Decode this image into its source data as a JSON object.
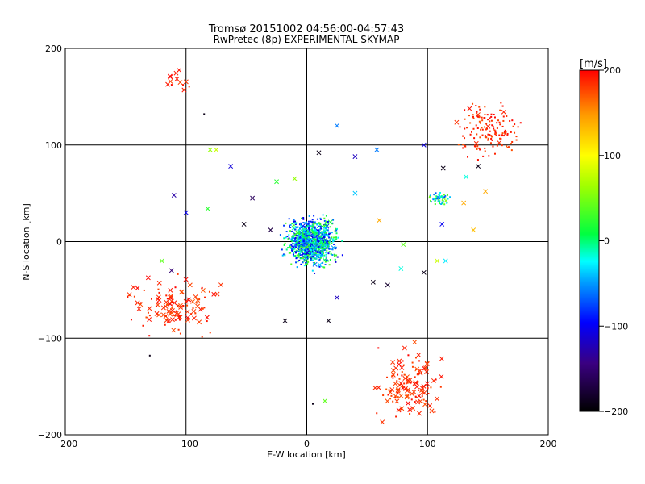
{
  "chart_data": {
    "type": "scatter",
    "title": "Tromsø 20151002 04:56:00-04:57:43",
    "subtitle": "RwPretec (8p) EXPERIMENTAL SKYMAP",
    "xlabel": "E-W location [km]",
    "ylabel": "N-S location [km]",
    "xlim": [
      -200,
      200
    ],
    "ylim": [
      -200,
      200
    ],
    "xticks": [
      -200,
      -100,
      0,
      100,
      200
    ],
    "yticks": [
      -200,
      -100,
      0,
      100,
      200
    ],
    "xtick_labels": [
      "−200",
      "−100",
      "0",
      "100",
      "200"
    ],
    "ytick_labels": [
      "−200",
      "−100",
      "0",
      "100",
      "200"
    ],
    "grid": true,
    "markers": [
      "point",
      "x"
    ],
    "colorbar": {
      "label": "[m/s]",
      "min": -200,
      "max": 200,
      "ticks": [
        200,
        100,
        0,
        -100,
        -200
      ],
      "tick_labels": [
        "200",
        "100",
        "0",
        "−100",
        "−200"
      ],
      "colormap": "rainbow"
    },
    "clusters": [
      {
        "name": "central-meteor-cluster",
        "center": [
          4,
          0
        ],
        "spread": [
          16,
          18
        ],
        "count": 1100,
        "velocity_range": [
          -110,
          40
        ],
        "marker": "point"
      },
      {
        "name": "northeast-cluster",
        "center": [
          150,
          115
        ],
        "spread": [
          22,
          22
        ],
        "count": 150,
        "velocity_range": [
          170,
          200
        ],
        "marker": "point"
      },
      {
        "name": "east-cluster",
        "center": [
          110,
          45
        ],
        "spread": [
          7,
          6
        ],
        "count": 60,
        "velocity_range": [
          -80,
          60
        ],
        "marker": "point"
      },
      {
        "name": "southeast-cluster",
        "center": [
          85,
          -150
        ],
        "spread": [
          20,
          28
        ],
        "count": 140,
        "velocity_range": [
          170,
          200
        ],
        "marker": "x"
      },
      {
        "name": "southwest-cluster",
        "center": [
          -110,
          -65
        ],
        "spread": [
          30,
          22
        ],
        "count": 120,
        "velocity_range": [
          170,
          200
        ],
        "marker": "x"
      },
      {
        "name": "northwest-cluster",
        "center": [
          -108,
          165
        ],
        "spread": [
          10,
          10
        ],
        "count": 14,
        "velocity_range": [
          170,
          200
        ],
        "marker": "x"
      }
    ],
    "points": [
      {
        "x": -80,
        "y": 95,
        "v": 60,
        "m": "x"
      },
      {
        "x": -75,
        "y": 95,
        "v": 80,
        "m": "x"
      },
      {
        "x": -110,
        "y": 48,
        "v": -130,
        "m": "x"
      },
      {
        "x": -100,
        "y": 30,
        "v": -100,
        "m": "x"
      },
      {
        "x": -45,
        "y": 45,
        "v": -160,
        "m": "x"
      },
      {
        "x": -25,
        "y": 62,
        "v": 20,
        "m": "x"
      },
      {
        "x": -10,
        "y": 65,
        "v": 60,
        "m": "x"
      },
      {
        "x": 25,
        "y": 120,
        "v": -60,
        "m": "x"
      },
      {
        "x": 10,
        "y": 92,
        "v": -190,
        "m": "x"
      },
      {
        "x": 40,
        "y": 88,
        "v": -120,
        "m": "x"
      },
      {
        "x": 58,
        "y": 95,
        "v": -60,
        "m": "x"
      },
      {
        "x": 97,
        "y": 100,
        "v": -110,
        "m": "x"
      },
      {
        "x": 40,
        "y": 50,
        "v": -40,
        "m": "x"
      },
      {
        "x": -30,
        "y": 12,
        "v": -170,
        "m": "x"
      },
      {
        "x": -52,
        "y": 18,
        "v": -190,
        "m": "x"
      },
      {
        "x": 60,
        "y": 22,
        "v": 140,
        "m": "x"
      },
      {
        "x": 80,
        "y": -3,
        "v": 40,
        "m": "x"
      },
      {
        "x": 78,
        "y": -28,
        "v": -20,
        "m": "x"
      },
      {
        "x": 97,
        "y": -32,
        "v": -190,
        "m": "x"
      },
      {
        "x": 55,
        "y": -42,
        "v": -190,
        "m": "x"
      },
      {
        "x": 67,
        "y": -45,
        "v": -180,
        "m": "x"
      },
      {
        "x": 25,
        "y": -58,
        "v": -120,
        "m": "x"
      },
      {
        "x": -18,
        "y": -82,
        "v": -190,
        "m": "x"
      },
      {
        "x": 18,
        "y": -82,
        "v": -190,
        "m": "x"
      },
      {
        "x": 15,
        "y": -165,
        "v": 40,
        "m": "x"
      },
      {
        "x": 138,
        "y": 12,
        "v": 130,
        "m": "x"
      },
      {
        "x": 148,
        "y": 52,
        "v": 140,
        "m": "x"
      },
      {
        "x": 142,
        "y": 78,
        "v": -190,
        "m": "x"
      },
      {
        "x": 113,
        "y": 76,
        "v": -190,
        "m": "x"
      },
      {
        "x": 130,
        "y": 40,
        "v": 140,
        "m": "x"
      },
      {
        "x": 132,
        "y": 67,
        "v": -20,
        "m": "x"
      },
      {
        "x": -120,
        "y": -20,
        "v": 40,
        "m": "x"
      },
      {
        "x": -112,
        "y": -30,
        "v": -150,
        "m": "x"
      },
      {
        "x": -82,
        "y": 34,
        "v": 20,
        "m": "x"
      },
      {
        "x": -63,
        "y": 78,
        "v": -110,
        "m": "x"
      },
      {
        "x": 112,
        "y": 18,
        "v": -100,
        "m": "x"
      },
      {
        "x": 115,
        "y": -20,
        "v": -30,
        "m": "x"
      },
      {
        "x": 108,
        "y": -20,
        "v": 80,
        "m": "x"
      },
      {
        "x": -130,
        "y": -118,
        "v": -190,
        "m": "point"
      },
      {
        "x": -85,
        "y": 132,
        "v": -190,
        "m": "point"
      },
      {
        "x": 5,
        "y": -168,
        "v": -190,
        "m": "point"
      }
    ]
  }
}
